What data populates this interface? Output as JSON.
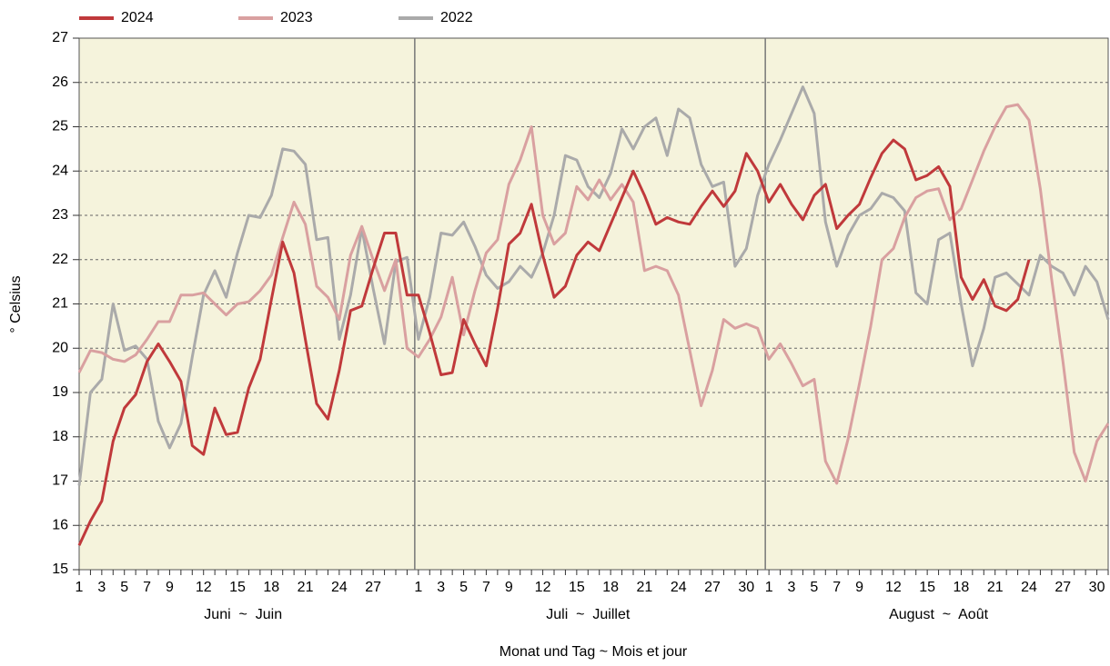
{
  "chart_data": {
    "type": "line",
    "y_label": "° Celsius",
    "x_label": "Monat und Tag  ~  Mois et jour",
    "month_labels": [
      "Juni  ~  Juin",
      "Juli  ~  Juillet",
      "August  ~  Août"
    ],
    "categories": [
      "1",
      null,
      "3",
      null,
      "5",
      null,
      "7",
      null,
      "9",
      null,
      null,
      "12",
      null,
      null,
      "15",
      null,
      null,
      "18",
      null,
      null,
      "21",
      null,
      null,
      "24",
      null,
      null,
      "27",
      null,
      null,
      null,
      "1",
      null,
      "3",
      null,
      "5",
      null,
      "7",
      null,
      "9",
      null,
      null,
      "12",
      null,
      null,
      "15",
      null,
      null,
      "18",
      null,
      null,
      "21",
      null,
      null,
      "24",
      null,
      null,
      "27",
      null,
      null,
      "30",
      null,
      "1",
      null,
      "3",
      null,
      "5",
      null,
      "7",
      null,
      "9",
      null,
      null,
      "12",
      null,
      null,
      "15",
      null,
      null,
      "18",
      null,
      null,
      "21",
      null,
      null,
      "24",
      null,
      null,
      "27",
      null,
      null,
      "30",
      null
    ],
    "series": [
      {
        "name": "2024",
        "color": "#c0393b",
        "values": [
          15.55,
          16.1,
          16.55,
          17.9,
          18.65,
          18.95,
          19.7,
          20.1,
          19.7,
          19.25,
          17.8,
          17.6,
          18.65,
          18.05,
          18.1,
          19.1,
          19.75,
          21.1,
          22.4,
          21.7,
          20.2,
          18.75,
          18.4,
          19.5,
          20.85,
          20.95,
          21.8,
          22.6,
          22.6,
          21.2,
          21.2,
          20.35,
          19.4,
          19.45,
          20.65,
          20.1,
          19.6,
          20.9,
          22.35,
          22.6,
          23.25,
          22.1,
          21.15,
          21.4,
          22.1,
          22.4,
          22.2,
          22.8,
          23.4,
          24.0,
          23.45,
          22.8,
          22.95,
          22.85,
          22.8,
          23.2,
          23.55,
          23.2,
          23.55,
          24.4,
          24.0,
          23.3,
          23.7,
          23.25,
          22.9,
          23.45,
          23.7,
          22.7,
          23.0,
          23.25,
          23.85,
          24.4,
          24.7,
          24.5,
          23.8,
          23.9,
          24.1,
          23.65,
          21.6,
          21.1,
          21.55,
          20.95,
          20.85,
          21.1,
          22.0,
          null,
          null,
          null,
          null,
          null,
          null,
          null
        ]
      },
      {
        "name": "2023",
        "color": "#d9a0a0",
        "values": [
          19.45,
          19.95,
          19.9,
          19.75,
          19.7,
          19.85,
          20.2,
          20.6,
          20.6,
          21.2,
          21.2,
          21.25,
          21.0,
          20.75,
          21.0,
          21.05,
          21.3,
          21.65,
          22.5,
          23.3,
          22.8,
          21.4,
          21.15,
          20.65,
          22.1,
          22.75,
          22.0,
          21.3,
          22.0,
          20.0,
          19.8,
          20.2,
          20.7,
          21.6,
          20.3,
          21.3,
          22.15,
          22.45,
          23.7,
          24.25,
          25.0,
          23.0,
          22.35,
          22.6,
          23.65,
          23.35,
          23.8,
          23.35,
          23.7,
          23.3,
          21.75,
          21.85,
          21.75,
          21.2,
          19.95,
          18.7,
          19.5,
          20.65,
          20.45,
          20.55,
          20.45,
          19.75,
          20.1,
          19.65,
          19.15,
          19.3,
          17.45,
          16.95,
          17.95,
          19.2,
          20.5,
          22.0,
          22.25,
          22.95,
          23.4,
          23.55,
          23.6,
          22.9,
          23.15,
          23.8,
          24.45,
          25.0,
          25.45,
          25.5,
          25.15,
          23.6,
          21.55,
          19.7,
          17.65,
          17.0,
          17.9,
          18.3
        ]
      },
      {
        "name": "2022",
        "color": "#aaaaaa",
        "values": [
          16.9,
          19.0,
          19.3,
          21.0,
          19.95,
          20.05,
          19.75,
          18.35,
          17.75,
          18.3,
          19.8,
          21.2,
          21.75,
          21.15,
          22.15,
          23.0,
          22.95,
          23.45,
          24.5,
          24.45,
          24.15,
          22.45,
          22.5,
          20.2,
          21.2,
          22.7,
          21.35,
          20.1,
          21.95,
          22.05,
          20.2,
          21.15,
          22.6,
          22.55,
          22.85,
          22.3,
          21.65,
          21.35,
          21.5,
          21.85,
          21.6,
          22.15,
          23.0,
          24.35,
          24.25,
          23.65,
          23.4,
          23.95,
          24.95,
          24.5,
          25.0,
          25.2,
          24.35,
          25.4,
          25.2,
          24.15,
          23.65,
          23.75,
          21.85,
          22.25,
          23.45,
          24.15,
          24.7,
          25.3,
          25.9,
          25.3,
          22.85,
          21.85,
          22.55,
          23.0,
          23.15,
          23.5,
          23.4,
          23.1,
          21.25,
          21.0,
          22.45,
          22.6,
          21.0,
          19.6,
          20.45,
          21.6,
          21.7,
          21.45,
          21.2,
          22.1,
          21.85,
          21.7,
          21.2,
          21.85,
          21.5,
          20.65
        ]
      }
    ],
    "ylim": [
      15,
      27
    ],
    "yticks": [
      15,
      16,
      17,
      18,
      19,
      20,
      21,
      22,
      23,
      24,
      25,
      26,
      27
    ],
    "grid": true,
    "legend": "top-left",
    "background": "#f5f3dc"
  }
}
